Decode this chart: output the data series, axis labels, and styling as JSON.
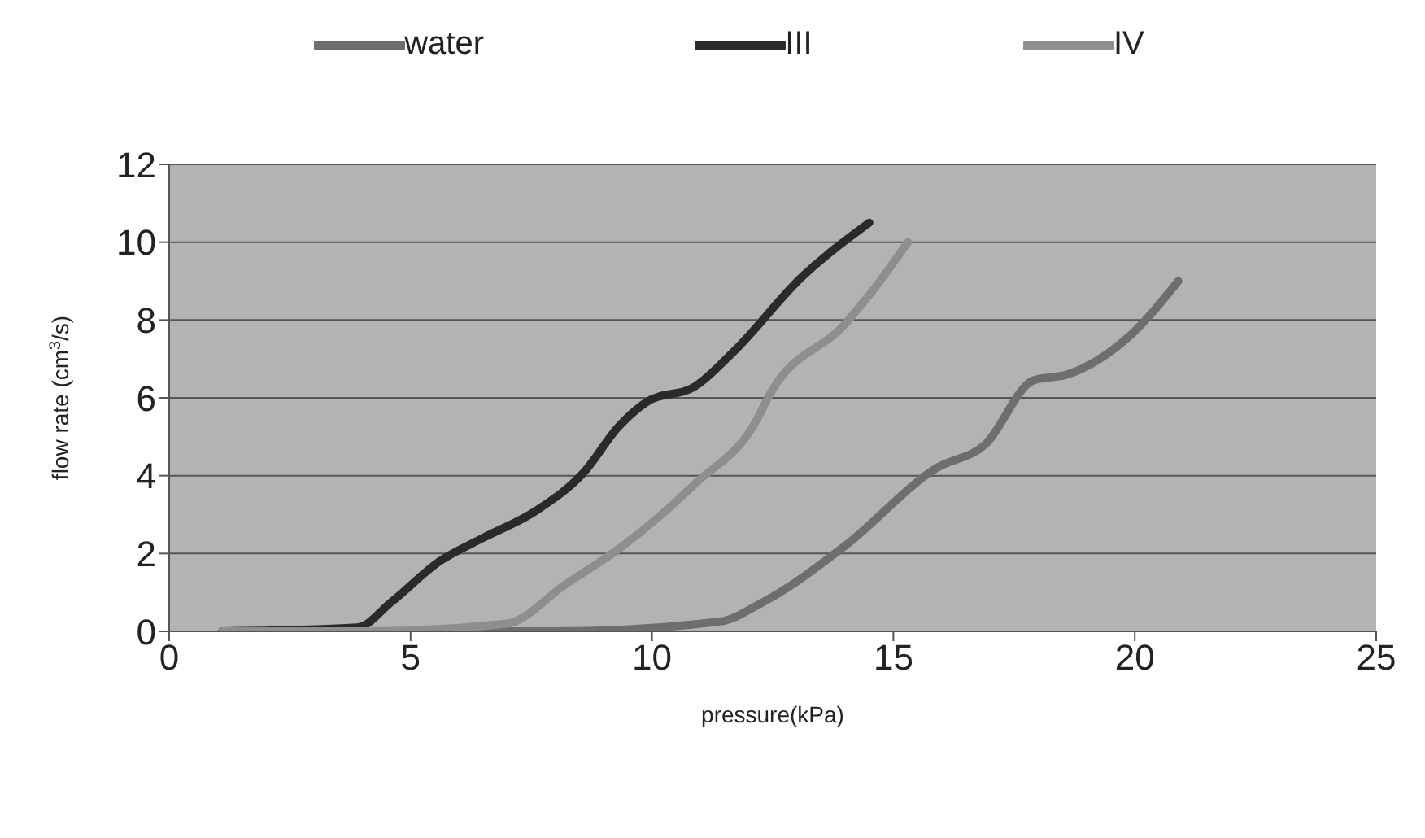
{
  "chart_data": {
    "type": "line",
    "xlabel": "pressure(kPa)",
    "ylabel": "flow rate (cm$^{3}$/s)",
    "xlim": [
      0,
      25
    ],
    "xticks": [
      0,
      5,
      10,
      15,
      20,
      25
    ],
    "ylim": [
      0,
      12
    ],
    "yticks": [
      0,
      2,
      4,
      6,
      8,
      10,
      12
    ],
    "grid": "y",
    "legend": "top",
    "marker": "none",
    "line_style": "solid",
    "series": [
      {
        "name": "water",
        "color": "#6e6e6e",
        "x": [
          1.1,
          4,
          8,
          11.4,
          12.3,
          14,
          15.9,
          16.9,
          17.9,
          18.6,
          19.9,
          20.9
        ],
        "values": [
          0,
          0,
          0,
          0.25,
          0.75,
          2.2,
          4.2,
          4.8,
          6.45,
          6.6,
          7.6,
          9
        ]
      },
      {
        "name": "III",
        "color": "#2a2a2a",
        "x": [
          1.1,
          3.9,
          4.6,
          5.6,
          6.5,
          7.6,
          8.6,
          9.3,
          9.9,
          10.9,
          11.7,
          13.1,
          14.5
        ],
        "values": [
          0,
          0.1,
          0.75,
          1.8,
          2.4,
          3.1,
          4.1,
          5.25,
          5.9,
          6.3,
          7.2,
          9.1,
          10.5
        ]
      },
      {
        "name": "IV",
        "color": "#8e8e8e",
        "x": [
          1.1,
          4,
          7,
          8.2,
          9.4,
          10.9,
          12.2,
          12.4,
          14,
          14.6,
          15.3
        ],
        "values": [
          0,
          0,
          0.2,
          1.2,
          2.2,
          3.8,
          5.5,
          6,
          7.9,
          8.8,
          10
        ]
      }
    ]
  }
}
